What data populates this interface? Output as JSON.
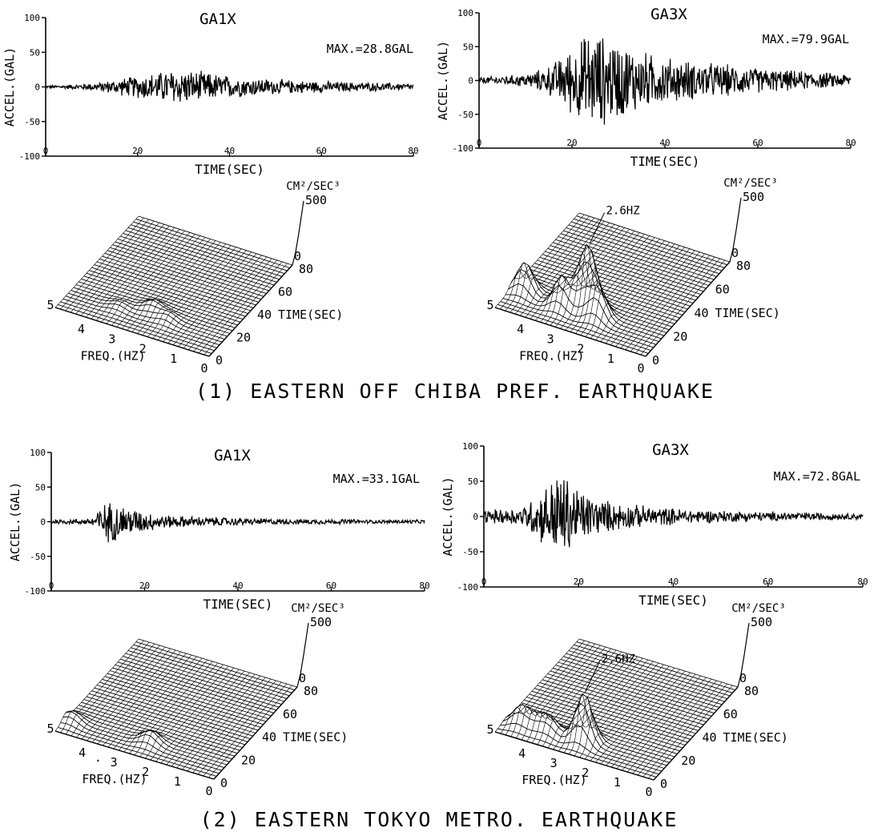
{
  "captions": {
    "section1": "(1) EASTERN OFF CHIBA PREF. EARTHQUAKE",
    "section2": "(2) EASTERN TOKYO METRO. EARTHQUAKE"
  },
  "chart_data": [
    {
      "type": "line",
      "title": "GA1X",
      "annotation": "MAX.=28.8GAL",
      "xlabel": "TIME(SEC)",
      "ylabel": "ACCEL.(GAL)",
      "xlim": [
        0,
        80
      ],
      "ylim": [
        -100,
        100
      ],
      "xticks": [
        0,
        20,
        40,
        60,
        80
      ],
      "yticks": [
        100,
        50,
        0,
        -50,
        -100
      ],
      "max_abs": 28.8,
      "envelope": [
        2,
        3,
        5,
        8,
        13,
        18,
        23,
        28.8,
        26,
        22,
        18,
        15,
        13,
        11,
        10,
        9,
        8,
        7,
        7,
        6,
        5
      ]
    },
    {
      "type": "line",
      "title": "GA3X",
      "annotation": "MAX.=79.9GAL",
      "xlabel": "TIME(SEC)",
      "ylabel": "ACCEL.(GAL)",
      "xlim": [
        0,
        80
      ],
      "ylim": [
        -100,
        100
      ],
      "xticks": [
        0,
        20,
        40,
        60,
        80
      ],
      "yticks": [
        100,
        50,
        0,
        -50,
        -100
      ],
      "max_abs": 79.9,
      "envelope": [
        5,
        7,
        9,
        14,
        28,
        55,
        79.9,
        70,
        58,
        45,
        38,
        33,
        30,
        27,
        24,
        20,
        18,
        16,
        14,
        12,
        10
      ]
    },
    {
      "type": "surface",
      "zlabel": "CM²/SEC³",
      "zmax_tick": "500",
      "z_ticks": [
        "0"
      ],
      "xlabel": "FREQ.(HZ)",
      "ylabel": "TIME(SEC)",
      "freq_ticks": [
        "5",
        "4",
        "3",
        "2",
        "1",
        "0"
      ],
      "time_ticks": [
        "0",
        "20",
        "40",
        "60",
        "80"
      ],
      "annotation": "",
      "peaks": [
        {
          "freq": 2.5,
          "time": 20,
          "height": 0.09
        },
        {
          "freq": 1.9,
          "time": 16,
          "height": 0.07
        },
        {
          "freq": 3.4,
          "time": 14,
          "height": 0.05
        }
      ]
    },
    {
      "type": "surface",
      "zlabel": "CM²/SEC³",
      "zmax_tick": "500",
      "z_ticks": [
        "0"
      ],
      "xlabel": "FREQ.(HZ)",
      "ylabel": "TIME(SEC)",
      "freq_ticks": [
        "5",
        "4",
        "3",
        "2",
        "1",
        "0"
      ],
      "time_ticks": [
        "0",
        "20",
        "40",
        "60",
        "80"
      ],
      "annotation": "2.6HZ",
      "peaks": [
        {
          "freq": 2.6,
          "time": 20,
          "height": 0.6
        },
        {
          "freq": 4.6,
          "time": 17,
          "height": 0.3
        },
        {
          "freq": 3.3,
          "time": 15,
          "height": 0.32
        },
        {
          "freq": 2.1,
          "time": 15,
          "height": 0.3
        },
        {
          "freq": 3.0,
          "time": 24,
          "height": 0.25
        }
      ]
    },
    {
      "type": "line",
      "title": "GA1X",
      "annotation": "MAX.=33.1GAL",
      "xlabel": "TIME(SEC)",
      "ylabel": "ACCEL.(GAL)",
      "xlim": [
        0,
        80
      ],
      "ylim": [
        -100,
        100
      ],
      "xticks": [
        0,
        20,
        40,
        60,
        80
      ],
      "yticks": [
        100,
        50,
        0,
        -50,
        -100
      ],
      "max_abs": 33.1,
      "envelope": [
        4,
        4,
        5,
        33.1,
        25,
        16,
        11,
        9,
        8,
        7,
        6,
        5,
        5,
        4,
        4,
        4,
        4,
        3,
        3,
        3,
        3
      ]
    },
    {
      "type": "line",
      "title": "GA3X",
      "annotation": "MAX.=72.8GAL",
      "xlabel": "TIME(SEC)",
      "ylabel": "ACCEL.(GAL)",
      "xlim": [
        0,
        80
      ],
      "ylim": [
        -100,
        100
      ],
      "xticks": [
        0,
        20,
        40,
        60,
        80
      ],
      "yticks": [
        100,
        50,
        0,
        -50,
        -100
      ],
      "max_abs": 72.8,
      "envelope": [
        10,
        12,
        14,
        40,
        72.8,
        45,
        28,
        22,
        18,
        15,
        13,
        11,
        10,
        9,
        8,
        7,
        7,
        6,
        6,
        5,
        5
      ]
    },
    {
      "type": "surface",
      "zlabel": "CM²/SEC³",
      "zmax_tick": "500",
      "z_ticks": [
        "0"
      ],
      "xlabel": "FREQ.(HZ)",
      "ylabel": "TIME(SEC)",
      "freq_ticks": [
        "5",
        "4",
        ".",
        "3",
        "2",
        "1",
        "0"
      ],
      "time_ticks": [
        "0",
        "20",
        "40",
        "60",
        "80"
      ],
      "annotation": "",
      "peaks": [
        {
          "freq": 4.8,
          "time": 10,
          "height": 0.1
        },
        {
          "freq": 2.4,
          "time": 12,
          "height": 0.12
        }
      ]
    },
    {
      "type": "surface",
      "zlabel": "CM²/SEC³",
      "zmax_tick": "500",
      "z_ticks": [
        "0"
      ],
      "xlabel": "FREQ.(HZ)",
      "ylabel": "TIME(SEC)",
      "freq_ticks": [
        "5",
        "4",
        "3",
        "2",
        "1",
        "0"
      ],
      "time_ticks": [
        "0",
        "20",
        "40",
        "60",
        "80"
      ],
      "annotation": "2.6HZ",
      "peaks": [
        {
          "freq": 2.6,
          "time": 12,
          "height": 0.5
        },
        {
          "freq": 4.5,
          "time": 10,
          "height": 0.2
        },
        {
          "freq": 3.6,
          "time": 10,
          "height": 0.15
        },
        {
          "freq": 4.0,
          "time": 11,
          "height": 0.12
        }
      ]
    }
  ]
}
